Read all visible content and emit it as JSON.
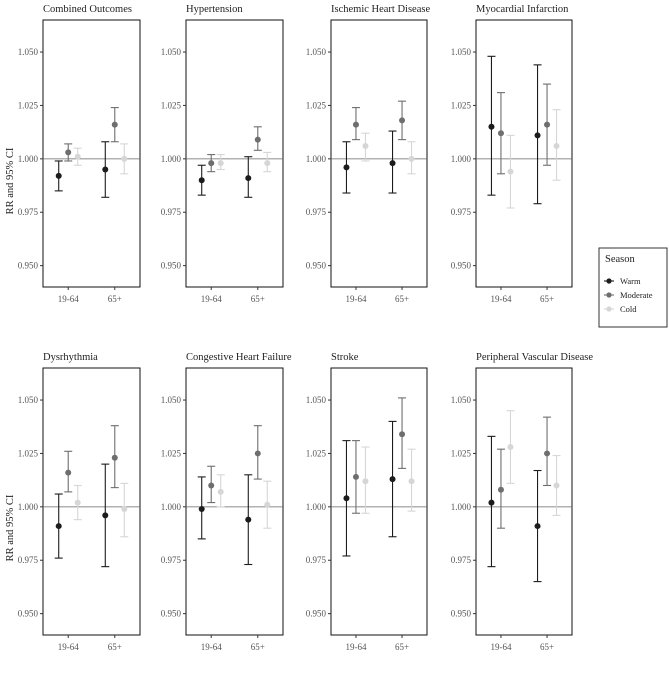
{
  "y_axis_label": "RR and 95% CI",
  "legend": {
    "title": "Season",
    "items": [
      {
        "name": "Warm",
        "color": "#1c1c1c"
      },
      {
        "name": "Moderate",
        "color": "#6e6e6e"
      },
      {
        "name": "Cold",
        "color": "#d6d6d6"
      }
    ]
  },
  "chart_data": [
    {
      "type": "scatter",
      "title": "Combined Outcomes",
      "categories": [
        "19-64",
        "65+"
      ],
      "ylim": [
        0.94,
        1.065
      ],
      "yticks": [
        "0.950",
        "0.975",
        "1.000",
        "1.025",
        "1.050"
      ],
      "reference_line": 1.0,
      "series": [
        {
          "name": "Warm",
          "values": [
            {
              "est": 0.992,
              "lo": 0.985,
              "hi": 0.999
            },
            {
              "est": 0.995,
              "lo": 0.982,
              "hi": 1.008
            }
          ]
        },
        {
          "name": "Moderate",
          "values": [
            {
              "est": 1.003,
              "lo": 0.999,
              "hi": 1.007
            },
            {
              "est": 1.016,
              "lo": 1.008,
              "hi": 1.024
            }
          ]
        },
        {
          "name": "Cold",
          "values": [
            {
              "est": 1.001,
              "lo": 0.997,
              "hi": 1.005
            },
            {
              "est": 1.0,
              "lo": 0.993,
              "hi": 1.007
            }
          ]
        }
      ]
    },
    {
      "type": "scatter",
      "title": "Hypertension",
      "categories": [
        "19-64",
        "65+"
      ],
      "ylim": [
        0.94,
        1.065
      ],
      "yticks": [
        "0.950",
        "0.975",
        "1.000",
        "1.025",
        "1.050"
      ],
      "reference_line": 1.0,
      "series": [
        {
          "name": "Warm",
          "values": [
            {
              "est": 0.99,
              "lo": 0.983,
              "hi": 0.997
            },
            {
              "est": 0.991,
              "lo": 0.982,
              "hi": 1.001
            }
          ]
        },
        {
          "name": "Moderate",
          "values": [
            {
              "est": 0.998,
              "lo": 0.994,
              "hi": 1.002
            },
            {
              "est": 1.009,
              "lo": 1.004,
              "hi": 1.015
            }
          ]
        },
        {
          "name": "Cold",
          "values": [
            {
              "est": 0.998,
              "lo": 0.995,
              "hi": 1.002
            },
            {
              "est": 0.998,
              "lo": 0.994,
              "hi": 1.003
            }
          ]
        }
      ]
    },
    {
      "type": "scatter",
      "title": "Ischemic Heart Disease",
      "categories": [
        "19-64",
        "65+"
      ],
      "ylim": [
        0.94,
        1.065
      ],
      "yticks": [
        "0.950",
        "0.975",
        "1.000",
        "1.025",
        "1.050"
      ],
      "reference_line": 1.0,
      "series": [
        {
          "name": "Warm",
          "values": [
            {
              "est": 0.996,
              "lo": 0.984,
              "hi": 1.008
            },
            {
              "est": 0.998,
              "lo": 0.984,
              "hi": 1.013
            }
          ]
        },
        {
          "name": "Moderate",
          "values": [
            {
              "est": 1.016,
              "lo": 1.009,
              "hi": 1.024
            },
            {
              "est": 1.018,
              "lo": 1.009,
              "hi": 1.027
            }
          ]
        },
        {
          "name": "Cold",
          "values": [
            {
              "est": 1.006,
              "lo": 0.999,
              "hi": 1.012
            },
            {
              "est": 1.0,
              "lo": 0.993,
              "hi": 1.008
            }
          ]
        }
      ]
    },
    {
      "type": "scatter",
      "title": "Myocardial Infarction",
      "categories": [
        "19-64",
        "65+"
      ],
      "ylim": [
        0.94,
        1.065
      ],
      "yticks": [
        "0.950",
        "0.975",
        "1.000",
        "1.025",
        "1.050"
      ],
      "reference_line": 1.0,
      "series": [
        {
          "name": "Warm",
          "values": [
            {
              "est": 1.015,
              "lo": 0.983,
              "hi": 1.048
            },
            {
              "est": 1.011,
              "lo": 0.979,
              "hi": 1.044
            }
          ]
        },
        {
          "name": "Moderate",
          "values": [
            {
              "est": 1.012,
              "lo": 0.993,
              "hi": 1.031
            },
            {
              "est": 1.016,
              "lo": 0.997,
              "hi": 1.035
            }
          ]
        },
        {
          "name": "Cold",
          "values": [
            {
              "est": 0.994,
              "lo": 0.977,
              "hi": 1.011
            },
            {
              "est": 1.006,
              "lo": 0.99,
              "hi": 1.023
            }
          ]
        }
      ]
    },
    {
      "type": "scatter",
      "title": "Dysrhythmia",
      "categories": [
        "19-64",
        "65+"
      ],
      "ylim": [
        0.94,
        1.065
      ],
      "yticks": [
        "0.950",
        "0.975",
        "1.000",
        "1.025",
        "1.050"
      ],
      "reference_line": 1.0,
      "series": [
        {
          "name": "Warm",
          "values": [
            {
              "est": 0.991,
              "lo": 0.976,
              "hi": 1.006
            },
            {
              "est": 0.996,
              "lo": 0.972,
              "hi": 1.02
            }
          ]
        },
        {
          "name": "Moderate",
          "values": [
            {
              "est": 1.016,
              "lo": 1.007,
              "hi": 1.026
            },
            {
              "est": 1.023,
              "lo": 1.009,
              "hi": 1.038
            }
          ]
        },
        {
          "name": "Cold",
          "values": [
            {
              "est": 1.002,
              "lo": 0.994,
              "hi": 1.01
            },
            {
              "est": 0.999,
              "lo": 0.986,
              "hi": 1.011
            }
          ]
        }
      ]
    },
    {
      "type": "scatter",
      "title": "Congestive Heart Failure",
      "categories": [
        "19-64",
        "65+"
      ],
      "ylim": [
        0.94,
        1.065
      ],
      "yticks": [
        "0.950",
        "0.975",
        "1.000",
        "1.025",
        "1.050"
      ],
      "reference_line": 1.0,
      "series": [
        {
          "name": "Warm",
          "values": [
            {
              "est": 0.999,
              "lo": 0.985,
              "hi": 1.014
            },
            {
              "est": 0.994,
              "lo": 0.973,
              "hi": 1.015
            }
          ]
        },
        {
          "name": "Moderate",
          "values": [
            {
              "est": 1.01,
              "lo": 1.002,
              "hi": 1.019
            },
            {
              "est": 1.025,
              "lo": 1.013,
              "hi": 1.038
            }
          ]
        },
        {
          "name": "Cold",
          "values": [
            {
              "est": 1.007,
              "lo": 1.0,
              "hi": 1.015
            },
            {
              "est": 1.001,
              "lo": 0.99,
              "hi": 1.012
            }
          ]
        }
      ]
    },
    {
      "type": "scatter",
      "title": "Stroke",
      "categories": [
        "19-64",
        "65+"
      ],
      "ylim": [
        0.94,
        1.065
      ],
      "yticks": [
        "0.950",
        "0.975",
        "1.000",
        "1.025",
        "1.050"
      ],
      "reference_line": 1.0,
      "series": [
        {
          "name": "Warm",
          "values": [
            {
              "est": 1.004,
              "lo": 0.977,
              "hi": 1.031
            },
            {
              "est": 1.013,
              "lo": 0.986,
              "hi": 1.04
            }
          ]
        },
        {
          "name": "Moderate",
          "values": [
            {
              "est": 1.014,
              "lo": 0.997,
              "hi": 1.031
            },
            {
              "est": 1.034,
              "lo": 1.018,
              "hi": 1.051
            }
          ]
        },
        {
          "name": "Cold",
          "values": [
            {
              "est": 1.012,
              "lo": 0.997,
              "hi": 1.028
            },
            {
              "est": 1.012,
              "lo": 0.998,
              "hi": 1.027
            }
          ]
        }
      ]
    },
    {
      "type": "scatter",
      "title": "Peripheral Vascular Disease",
      "categories": [
        "19-64",
        "65+"
      ],
      "ylim": [
        0.94,
        1.065
      ],
      "yticks": [
        "0.950",
        "0.975",
        "1.000",
        "1.025",
        "1.050"
      ],
      "reference_line": 1.0,
      "series": [
        {
          "name": "Warm",
          "values": [
            {
              "est": 1.002,
              "lo": 0.972,
              "hi": 1.033
            },
            {
              "est": 0.991,
              "lo": 0.965,
              "hi": 1.017
            }
          ]
        },
        {
          "name": "Moderate",
          "values": [
            {
              "est": 1.008,
              "lo": 0.99,
              "hi": 1.027
            },
            {
              "est": 1.025,
              "lo": 1.01,
              "hi": 1.042
            }
          ]
        },
        {
          "name": "Cold",
          "values": [
            {
              "est": 1.028,
              "lo": 1.011,
              "hi": 1.045
            },
            {
              "est": 1.01,
              "lo": 0.996,
              "hi": 1.024
            }
          ]
        }
      ]
    }
  ]
}
